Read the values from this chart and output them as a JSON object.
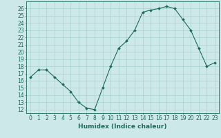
{
  "x": [
    0,
    1,
    2,
    3,
    4,
    5,
    6,
    7,
    8,
    9,
    10,
    11,
    12,
    13,
    14,
    15,
    16,
    17,
    18,
    19,
    20,
    21,
    22,
    23
  ],
  "y": [
    16.5,
    17.5,
    17.5,
    16.5,
    15.5,
    14.5,
    13.0,
    12.2,
    12.0,
    15.0,
    18.0,
    20.5,
    21.5,
    23.0,
    25.5,
    25.8,
    26.0,
    26.3,
    26.0,
    24.5,
    23.0,
    20.5,
    18.0,
    18.5
  ],
  "line_color": "#1a6b5a",
  "marker": "D",
  "marker_size": 2,
  "bg_color": "#cde8e8",
  "grid_color": "#a0cccc",
  "xlabel": "Humidex (Indice chaleur)",
  "ylim": [
    11.5,
    27
  ],
  "xlim": [
    -0.5,
    23.5
  ],
  "yticks": [
    12,
    13,
    14,
    15,
    16,
    17,
    18,
    19,
    20,
    21,
    22,
    23,
    24,
    25,
    26
  ],
  "xticks": [
    0,
    1,
    2,
    3,
    4,
    5,
    6,
    7,
    8,
    9,
    10,
    11,
    12,
    13,
    14,
    15,
    16,
    17,
    18,
    19,
    20,
    21,
    22,
    23
  ],
  "tick_fontsize": 5.5,
  "label_fontsize": 6.5,
  "axis_color": "#1a6b5a"
}
